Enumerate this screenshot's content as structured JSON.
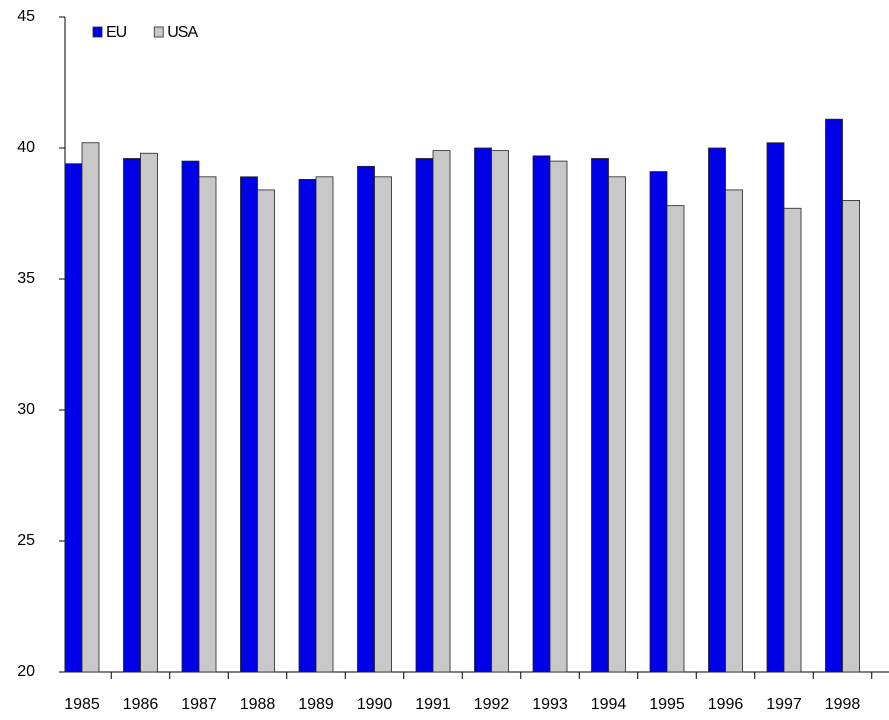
{
  "chart_data": {
    "type": "bar",
    "categories": [
      "1985",
      "1986",
      "1987",
      "1988",
      "1989",
      "1990",
      "1991",
      "1992",
      "1993",
      "1994",
      "1995",
      "1996",
      "1997",
      "1998"
    ],
    "series": [
      {
        "name": "EU",
        "color": "#0000e6",
        "values": [
          39.4,
          39.6,
          39.5,
          38.9,
          38.8,
          39.3,
          39.6,
          40.0,
          39.7,
          39.6,
          39.1,
          40.0,
          40.2,
          41.1
        ]
      },
      {
        "name": "USA",
        "color": "#c8c8c8",
        "values": [
          40.2,
          39.8,
          38.9,
          38.4,
          38.9,
          38.9,
          39.9,
          39.9,
          39.5,
          38.9,
          37.8,
          38.4,
          37.7,
          38.0
        ]
      }
    ],
    "ylim": [
      20,
      45
    ],
    "yticks": [
      20,
      25,
      30,
      35,
      40,
      45
    ],
    "grid": false,
    "legend": "upper left"
  }
}
